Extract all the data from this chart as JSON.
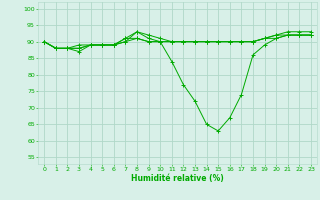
{
  "xlabel": "Humidité relative (%)",
  "ylabel": "",
  "background_color": "#d8f0e8",
  "grid_color": "#b0d8c8",
  "line_color": "#00aa00",
  "marker": "+",
  "xlim": [
    -0.5,
    23.5
  ],
  "ylim": [
    53,
    102
  ],
  "yticks": [
    55,
    60,
    65,
    70,
    75,
    80,
    85,
    90,
    95,
    100
  ],
  "xticks": [
    0,
    1,
    2,
    3,
    4,
    5,
    6,
    7,
    8,
    9,
    10,
    11,
    12,
    13,
    14,
    15,
    16,
    17,
    18,
    19,
    20,
    21,
    22,
    23
  ],
  "series": [
    [
      90,
      88,
      88,
      88,
      89,
      89,
      89,
      90,
      93,
      92,
      91,
      90,
      90,
      90,
      90,
      90,
      90,
      90,
      90,
      91,
      92,
      93,
      93,
      93
    ],
    [
      90,
      88,
      88,
      87,
      89,
      89,
      89,
      91,
      93,
      91,
      90,
      90,
      90,
      90,
      90,
      90,
      90,
      90,
      90,
      91,
      91,
      92,
      92,
      92
    ],
    [
      90,
      88,
      88,
      89,
      89,
      89,
      89,
      91,
      91,
      90,
      90,
      84,
      77,
      72,
      65,
      63,
      67,
      74,
      86,
      89,
      91,
      92,
      92,
      92
    ],
    [
      90,
      88,
      88,
      88,
      89,
      89,
      89,
      90,
      91,
      90,
      90,
      90,
      90,
      90,
      90,
      90,
      90,
      90,
      90,
      91,
      92,
      92,
      92,
      92
    ]
  ]
}
